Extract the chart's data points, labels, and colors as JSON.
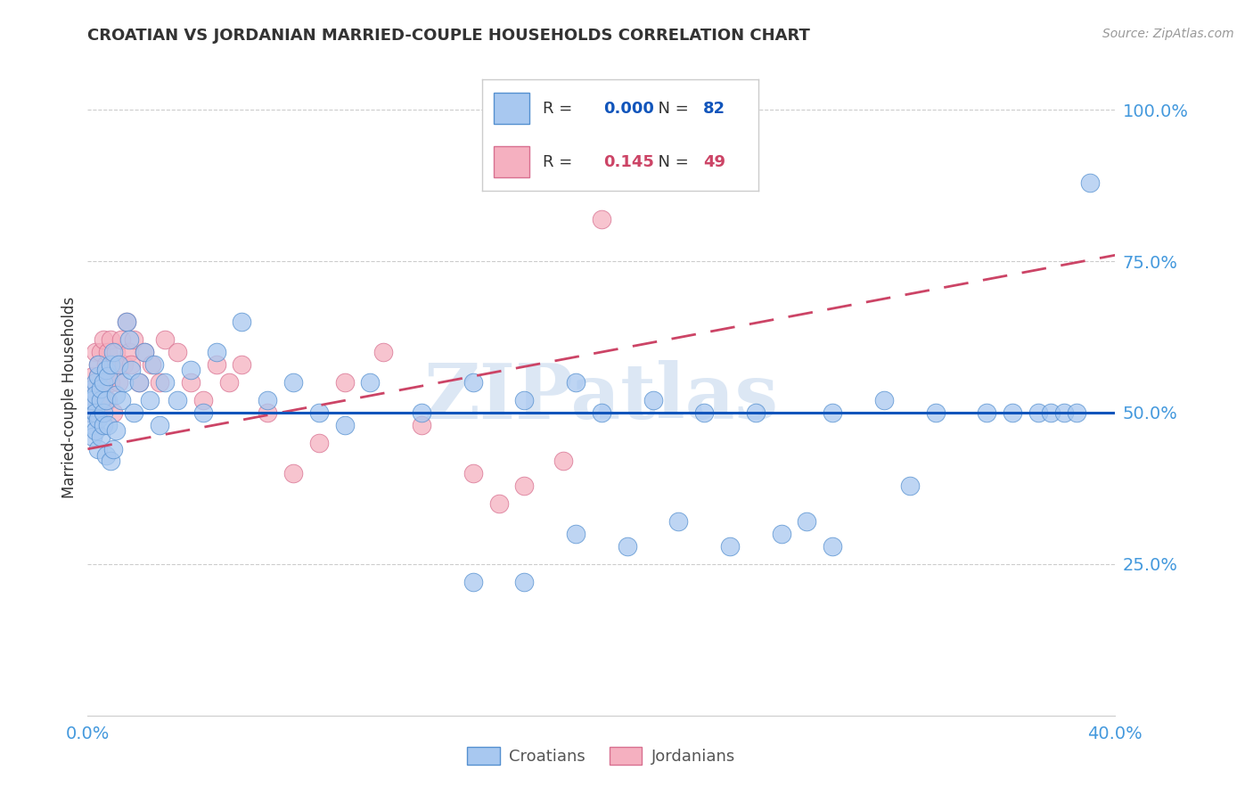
{
  "title": "CROATIAN VS JORDANIAN MARRIED-COUPLE HOUSEHOLDS CORRELATION CHART",
  "source": "Source: ZipAtlas.com",
  "ylabel": "Married-couple Households",
  "label_croatians": "Croatians",
  "label_jordanians": "Jordanians",
  "watermark": "ZIPatlas",
  "xmin": 0.0,
  "xmax": 0.4,
  "ymin": 0.0,
  "ymax": 1.05,
  "yticks": [
    0.25,
    0.5,
    0.75,
    1.0
  ],
  "ytick_labels": [
    "25.0%",
    "50.0%",
    "75.0%",
    "100.0%"
  ],
  "xtick_vals": [
    0.0,
    0.05,
    0.1,
    0.15,
    0.2,
    0.25,
    0.3,
    0.35,
    0.4
  ],
  "xtick_labels": [
    "0.0%",
    "",
    "",
    "",
    "",
    "",
    "",
    "",
    "40.0%"
  ],
  "croatian_face_color": "#A8C8F0",
  "jordanian_face_color": "#F5B0C0",
  "croatian_edge_color": "#5590D0",
  "jordanian_edge_color": "#D87090",
  "croatian_line_color": "#1155BB",
  "jordanian_line_color": "#CC4466",
  "R_croatian": 0.0,
  "N_croatian": 82,
  "R_jordanian": 0.145,
  "N_jordanian": 49,
  "grid_color": "#CCCCCC",
  "axis_tick_color": "#4499DD",
  "title_color": "#333333",
  "source_color": "#999999",
  "background_color": "#FFFFFF",
  "watermark_color": "#C5D8EE",
  "legend_R_N_color_blue": "#1155BB",
  "legend_R_N_color_pink": "#CC4466",
  "cr_x": [
    0.001,
    0.001,
    0.002,
    0.002,
    0.002,
    0.002,
    0.003,
    0.003,
    0.003,
    0.003,
    0.004,
    0.004,
    0.004,
    0.004,
    0.005,
    0.005,
    0.005,
    0.006,
    0.006,
    0.006,
    0.007,
    0.007,
    0.007,
    0.008,
    0.008,
    0.009,
    0.009,
    0.01,
    0.01,
    0.011,
    0.011,
    0.012,
    0.013,
    0.014,
    0.015,
    0.016,
    0.017,
    0.018,
    0.02,
    0.022,
    0.024,
    0.026,
    0.028,
    0.03,
    0.035,
    0.04,
    0.045,
    0.05,
    0.06,
    0.07,
    0.08,
    0.09,
    0.1,
    0.11,
    0.13,
    0.15,
    0.17,
    0.19,
    0.2,
    0.22,
    0.24,
    0.26,
    0.29,
    0.31,
    0.33,
    0.35,
    0.36,
    0.37,
    0.375,
    0.38,
    0.385,
    0.39,
    0.15,
    0.17,
    0.19,
    0.21,
    0.23,
    0.25,
    0.27,
    0.28,
    0.29,
    0.32
  ],
  "cr_y": [
    0.5,
    0.52,
    0.48,
    0.54,
    0.46,
    0.52,
    0.55,
    0.47,
    0.53,
    0.5,
    0.56,
    0.44,
    0.58,
    0.49,
    0.52,
    0.46,
    0.54,
    0.55,
    0.48,
    0.5,
    0.57,
    0.43,
    0.52,
    0.56,
    0.48,
    0.58,
    0.42,
    0.6,
    0.44,
    0.53,
    0.47,
    0.58,
    0.52,
    0.55,
    0.65,
    0.62,
    0.57,
    0.5,
    0.55,
    0.6,
    0.52,
    0.58,
    0.48,
    0.55,
    0.52,
    0.57,
    0.5,
    0.6,
    0.65,
    0.52,
    0.55,
    0.5,
    0.48,
    0.55,
    0.5,
    0.55,
    0.52,
    0.55,
    0.5,
    0.52,
    0.5,
    0.5,
    0.5,
    0.52,
    0.5,
    0.5,
    0.5,
    0.5,
    0.5,
    0.5,
    0.5,
    0.88,
    0.22,
    0.22,
    0.3,
    0.28,
    0.32,
    0.28,
    0.3,
    0.32,
    0.28,
    0.38
  ],
  "jo_x": [
    0.001,
    0.002,
    0.002,
    0.003,
    0.003,
    0.004,
    0.004,
    0.005,
    0.005,
    0.006,
    0.006,
    0.007,
    0.007,
    0.008,
    0.008,
    0.009,
    0.009,
    0.01,
    0.01,
    0.011,
    0.012,
    0.013,
    0.014,
    0.015,
    0.016,
    0.017,
    0.018,
    0.02,
    0.022,
    0.025,
    0.028,
    0.03,
    0.035,
    0.04,
    0.045,
    0.05,
    0.055,
    0.06,
    0.07,
    0.08,
    0.09,
    0.1,
    0.115,
    0.13,
    0.15,
    0.16,
    0.17,
    0.185,
    0.2
  ],
  "jo_y": [
    0.5,
    0.52,
    0.56,
    0.54,
    0.6,
    0.58,
    0.56,
    0.6,
    0.54,
    0.62,
    0.52,
    0.58,
    0.55,
    0.6,
    0.52,
    0.62,
    0.55,
    0.58,
    0.5,
    0.6,
    0.55,
    0.62,
    0.58,
    0.65,
    0.6,
    0.58,
    0.62,
    0.55,
    0.6,
    0.58,
    0.55,
    0.62,
    0.6,
    0.55,
    0.52,
    0.58,
    0.55,
    0.58,
    0.5,
    0.4,
    0.45,
    0.55,
    0.6,
    0.48,
    0.4,
    0.35,
    0.38,
    0.42,
    0.82
  ],
  "jo_line_x0": 0.0,
  "jo_line_y0": 0.44,
  "jo_line_x1": 0.4,
  "jo_line_y1": 0.76,
  "cr_line_y": 0.5
}
